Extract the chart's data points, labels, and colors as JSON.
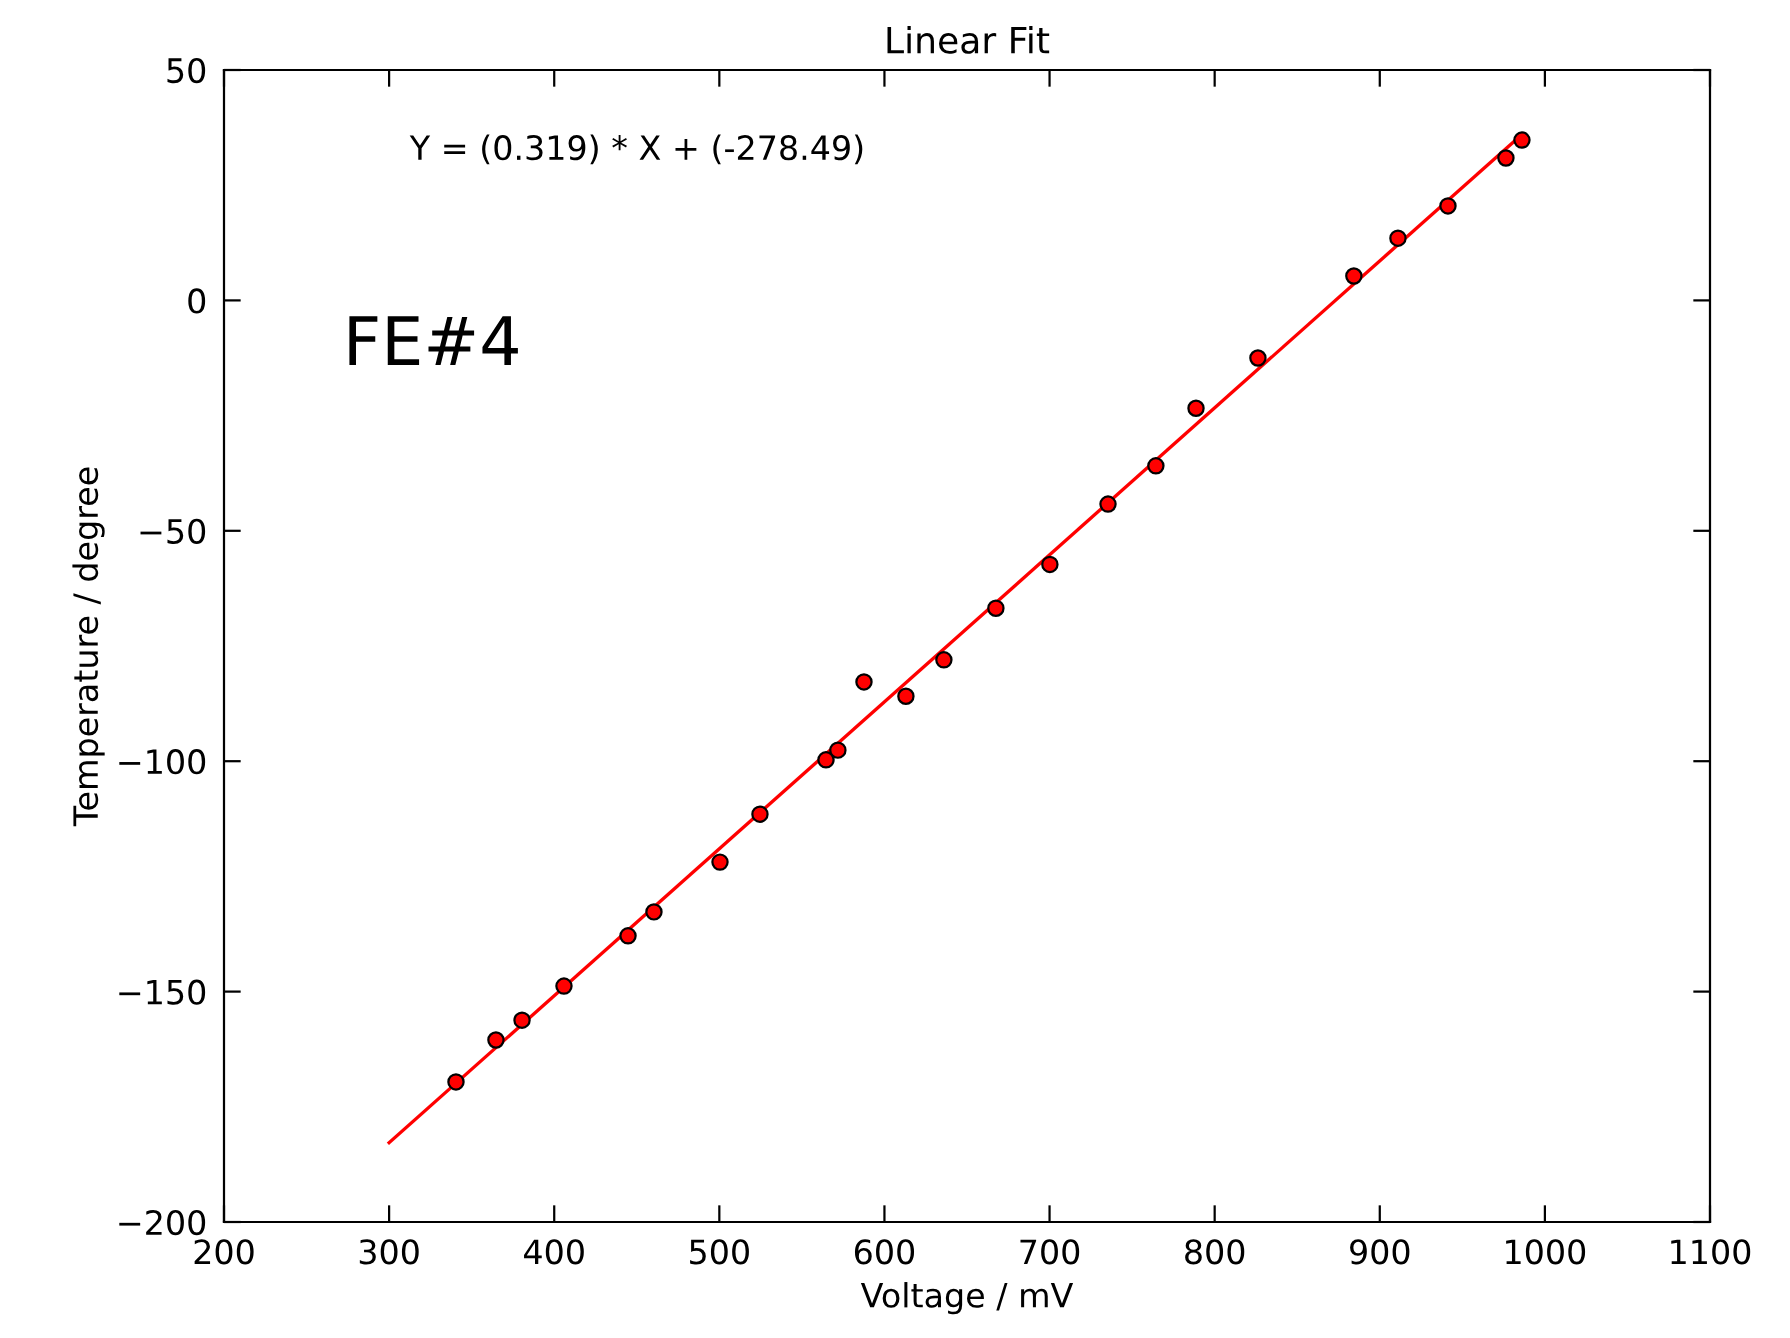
{
  "chart_data": {
    "type": "scatter",
    "title": "Linear Fit",
    "xlabel": "Voltage / mV",
    "ylabel": "Temperature / degree",
    "annotations": [
      "Y = (0.319) * X + (-278.49)",
      "FE#4"
    ],
    "xlim": [
      200,
      1100
    ],
    "xticks": [
      200,
      300,
      400,
      500,
      600,
      700,
      800,
      900,
      1000,
      1100
    ],
    "ylim": [
      -200,
      50
    ],
    "yticks": [
      -200,
      -150,
      -100,
      -50,
      0,
      50
    ],
    "grid": false,
    "series": [
      {
        "marker": "circle",
        "color": "#ff0000",
        "x": [
          340.5,
          364.7,
          380.5,
          405.9,
          444.7,
          460.4,
          500.4,
          524.6,
          564.6,
          571.8,
          587.6,
          613,
          636,
          667.5,
          700.2,
          735.4,
          764.4,
          788.7,
          826.2,
          884.3,
          911,
          941.3,
          976.4,
          986.1
        ],
        "values": [
          -169.6,
          -160.5,
          -156.2,
          -148.8,
          -137.9,
          -132.7,
          -121.9,
          -111.5,
          -99.7,
          -97.6,
          -82.8,
          -85.9,
          -78,
          -66.8,
          -57.3,
          -44.2,
          -35.9,
          -23.4,
          -12.5,
          5.3,
          13.5,
          20.5,
          30.9,
          34.8
        ]
      },
      {
        "type": "line",
        "color": "#ff0000",
        "marker": "none",
        "line_style": "solid",
        "x": [
          300,
          986
        ],
        "values": [
          -182.8,
          36.0
        ]
      }
    ]
  }
}
